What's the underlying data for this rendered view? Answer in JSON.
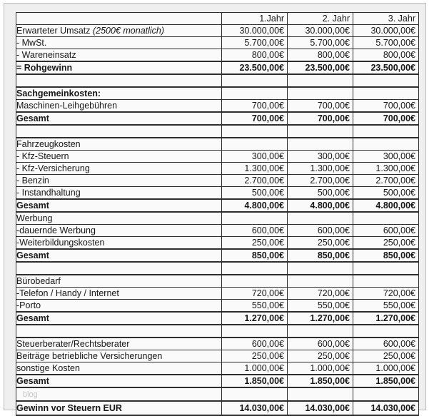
{
  "colors": {
    "outer_background": "#ffffff",
    "page_background": "#efefef",
    "cell_background": "#fafafa",
    "grid_border": "#2e2e2e",
    "text": "#161616",
    "watermark": "#c6c6c6"
  },
  "table": {
    "columns": [
      "",
      "1.Jahr",
      "2. Jahr",
      "3. Jahr"
    ],
    "rows": [
      {
        "label": "Erwarteter Umsatz",
        "note": "(2500€ monatlich)",
        "indent": 0,
        "values": [
          "30.000,00€",
          "30.000,00€",
          "30.000,00€"
        ]
      },
      {
        "label": "- MwSt.",
        "indent": 0,
        "values": [
          "5.700,00€",
          "5.700,00€",
          "5.700,00€"
        ]
      },
      {
        "label": "- Wareneinsatz",
        "indent": 0,
        "values": [
          "800,00€",
          "800,00€",
          "800,00€"
        ]
      },
      {
        "label": "= Rohgewinn",
        "indent": 0,
        "bold": true,
        "thick_top": true,
        "thick_bottom": true,
        "values": [
          "23.500,00€",
          "23.500,00€",
          "23.500,00€"
        ]
      },
      {
        "label": "",
        "values": [
          "",
          "",
          ""
        ]
      },
      {
        "label": "Sachgemeinkosten:",
        "indent": 0,
        "bold": true,
        "thick_top": true,
        "values": [
          "",
          "",
          ""
        ]
      },
      {
        "label": "Maschinen-Leihgebühren",
        "indent": 0,
        "values": [
          "700,00€",
          "700,00€",
          "700,00€"
        ]
      },
      {
        "label": "Gesamt",
        "indent": 3,
        "bold": true,
        "thick_top": true,
        "thick_bottom": true,
        "values": [
          "700,00€",
          "700,00€",
          "700,00€"
        ]
      },
      {
        "label": "",
        "values": [
          "",
          "",
          ""
        ]
      },
      {
        "label": "Fahrzeugkosten",
        "indent": 0,
        "thick_top": true,
        "values": [
          "",
          "",
          ""
        ]
      },
      {
        "label": "- Kfz-Steuern",
        "indent": 2,
        "values": [
          "300,00€",
          "300,00€",
          "300,00€"
        ]
      },
      {
        "label": "- Kfz-Versicherung",
        "indent": 2,
        "values": [
          "1.300,00€",
          "1.300,00€",
          "1.300,00€"
        ]
      },
      {
        "label": "- Benzin",
        "indent": 2,
        "values": [
          "2.700,00€",
          "2.700,00€",
          "2.700,00€"
        ]
      },
      {
        "label": "- Instandhaltung",
        "indent": 2,
        "values": [
          "500,00€",
          "500,00€",
          "500,00€"
        ]
      },
      {
        "label": "Gesamt",
        "indent": 3,
        "bold": true,
        "thick_top": true,
        "thick_bottom": true,
        "values": [
          "4.800,00€",
          "4.800,00€",
          "4.800,00€"
        ]
      },
      {
        "label": "Werbung",
        "indent": 0,
        "values": [
          "",
          "",
          ""
        ]
      },
      {
        "label": "-dauernde Werbung",
        "indent": 1,
        "values": [
          "600,00€",
          "600,00€",
          "600,00€"
        ]
      },
      {
        "label": "-Weiterbildungskosten",
        "indent": 1,
        "values": [
          "250,00€",
          "250,00€",
          "250,00€"
        ]
      },
      {
        "label": "Gesamt",
        "indent": 3,
        "bold": true,
        "thick_top": true,
        "thick_bottom": true,
        "values": [
          "850,00€",
          "850,00€",
          "850,00€"
        ]
      },
      {
        "label": "",
        "values": [
          "",
          "",
          ""
        ]
      },
      {
        "label": "Bürobedarf",
        "indent": 0,
        "thick_top": true,
        "values": [
          "",
          "",
          ""
        ]
      },
      {
        "label": "-Telefon / Handy / Internet",
        "indent": 2,
        "values": [
          "720,00€",
          "720,00€",
          "720,00€"
        ]
      },
      {
        "label": "-Porto",
        "indent": 2,
        "values": [
          "550,00€",
          "550,00€",
          "550,00€"
        ]
      },
      {
        "label": "Gesamt",
        "indent": 3,
        "bold": true,
        "thick_top": true,
        "thick_bottom": true,
        "values": [
          "1.270,00€",
          "1.270,00€",
          "1.270,00€"
        ]
      },
      {
        "label": "",
        "values": [
          "",
          "",
          ""
        ]
      },
      {
        "label": "Steuerberater/Rechtsberater",
        "indent": 0,
        "thick_top": true,
        "values": [
          "600,00€",
          "600,00€",
          "600,00€"
        ]
      },
      {
        "label": "Beiträge betriebliche Versicherungen",
        "indent": 0,
        "values": [
          "250,00€",
          "250,00€",
          "250,00€"
        ]
      },
      {
        "label": "sonstige Kosten",
        "indent": 0,
        "values": [
          "1.000,00€",
          "1.000,00€",
          "1.000,00€"
        ]
      },
      {
        "label": "Gesamt",
        "indent": 3,
        "bold": true,
        "thick_top": true,
        "thick_bottom": true,
        "values": [
          "1.850,00€",
          "1.850,00€",
          "1.850,00€"
        ]
      },
      {
        "label": "",
        "watermark": "blog",
        "values": [
          "",
          "",
          ""
        ]
      },
      {
        "label": "Gewinn vor Steuern EUR",
        "indent": 0,
        "bold": true,
        "thick_top": true,
        "thick_bottom": true,
        "tall": true,
        "values": [
          "14.030,00€",
          "14.030,00€",
          "14.030,00€"
        ]
      }
    ]
  }
}
